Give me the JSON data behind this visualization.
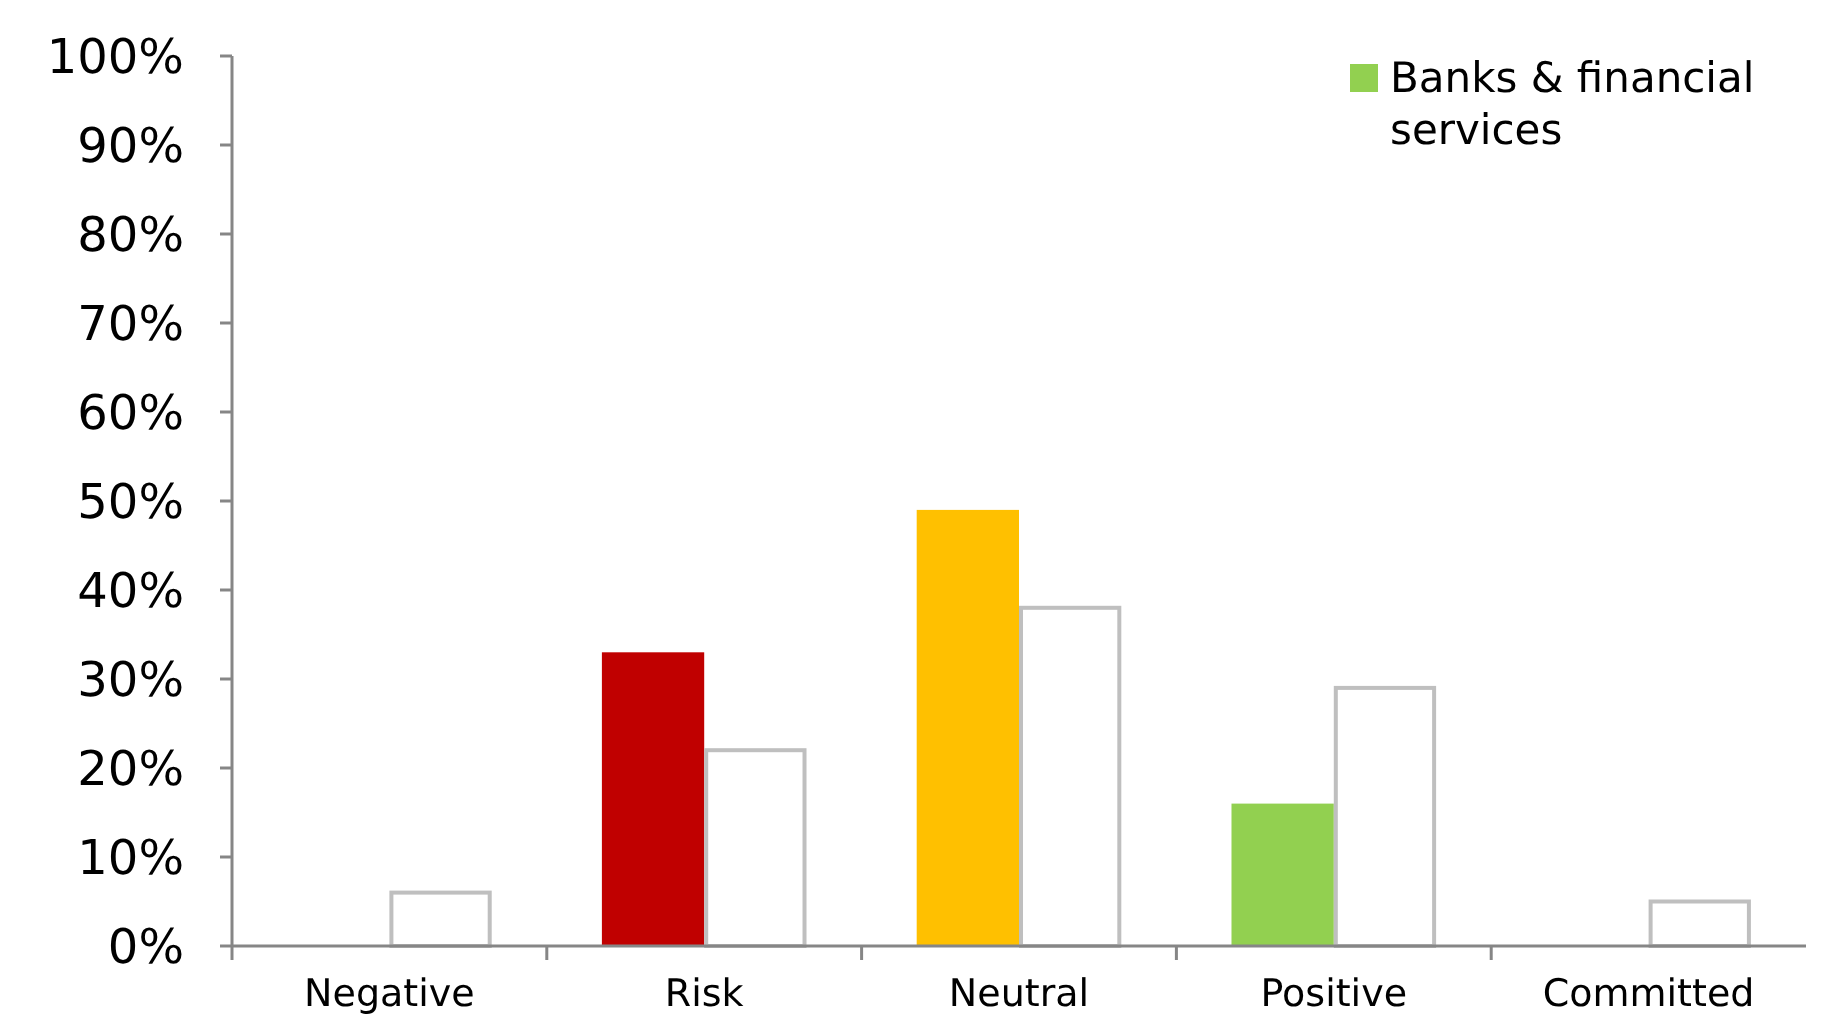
{
  "chart_data": {
    "type": "bar",
    "categories": [
      "Negative",
      "Risk",
      "Neutral",
      "Positive",
      "Committed"
    ],
    "series": [
      {
        "name": "Banks & financial services",
        "color": "#92d050",
        "colors": [
          "#92d050",
          "#c00000",
          "#ffc000",
          "#92d050",
          "#92d050"
        ],
        "values": [
          0,
          33,
          49,
          16,
          0
        ]
      },
      {
        "color": "#ffffff",
        "values": [
          6,
          22,
          38,
          29,
          5
        ]
      }
    ],
    "ylim": [
      0,
      100
    ],
    "yticks": [
      {
        "value": 0,
        "label": "0%"
      },
      {
        "value": 10,
        "label": "10%"
      },
      {
        "value": 20,
        "label": "20%"
      },
      {
        "value": 30,
        "label": "30%"
      },
      {
        "value": 40,
        "label": "40%"
      },
      {
        "value": 50,
        "label": "50%"
      },
      {
        "value": 60,
        "label": "60%"
      },
      {
        "value": 70,
        "label": "70%"
      },
      {
        "value": 80,
        "label": "80%"
      },
      {
        "value": 90,
        "label": "90%"
      },
      {
        "value": 100,
        "label": "100%"
      }
    ],
    "grid": false,
    "legend": "top right"
  }
}
